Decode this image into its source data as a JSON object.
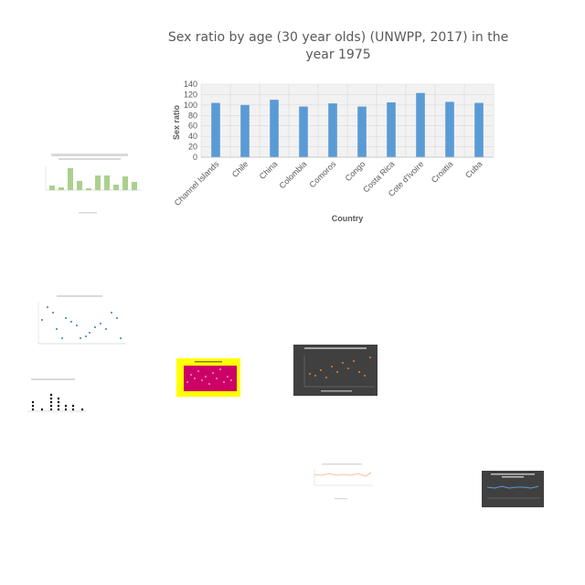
{
  "chart_data": {
    "type": "bar",
    "title": "Sex ratio by age (30 year olds) (UNWPP, 2017) in the year 1975",
    "xlabel": "Country",
    "ylabel": "Sex ratio",
    "ylim": [
      0,
      140
    ],
    "yticks": [
      "0",
      "20",
      "40",
      "60",
      "80",
      "100",
      "120",
      "140"
    ],
    "grid": true,
    "categories": [
      "Channel Islands",
      "Chile",
      "China",
      "Colombia",
      "Comoros",
      "Congo",
      "Costa Rica",
      "Cote d'Ivoire",
      "Croatia",
      "Cuba"
    ],
    "values": [
      104,
      100,
      110,
      97,
      103,
      97,
      105,
      123,
      106,
      104
    ],
    "color": "#5b9bd5"
  }
}
